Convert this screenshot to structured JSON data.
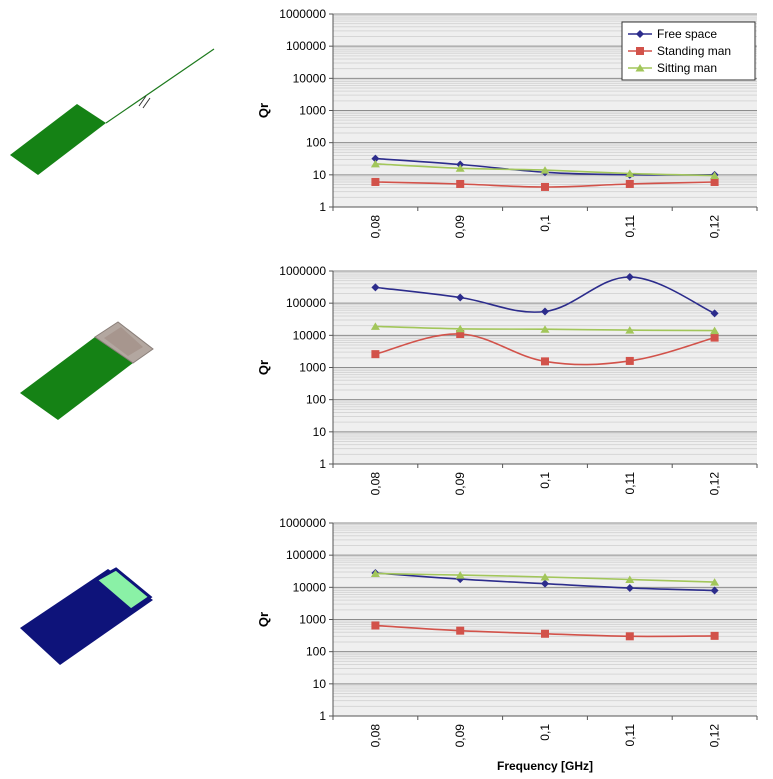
{
  "colors": {
    "free_space": "#2c2c8c",
    "standing_man": "#d2524a",
    "sitting_man": "#a2c65a",
    "plot_bg": "#efefef",
    "grid_major": "#8c8c8c",
    "grid_minor": "#d6d6d6",
    "antenna_green": "#158215",
    "phone_body": "#0e137a",
    "phone_screen": "#8af1a6",
    "chip_gray": "#b3a7a0"
  },
  "antennas": [
    {
      "name": "wire-antenna-model"
    },
    {
      "name": "chip-antenna-model"
    },
    {
      "name": "phone-antenna-model"
    }
  ],
  "chart_data": [
    {
      "type": "line",
      "yscale": "log",
      "ylim": [
        1,
        1000000
      ],
      "ylabel": "Qr",
      "xlabel": "",
      "yticks": [
        "1",
        "10",
        "100",
        "1000",
        "10000",
        "100000",
        "1000000"
      ],
      "categories": [
        "0,08",
        "0,09",
        "0,1",
        "0,11",
        "0,12"
      ],
      "legend": {
        "placement": "top-right"
      },
      "grid": true,
      "series": [
        {
          "name": "Free space",
          "marker": "diamond",
          "values": [
            32,
            21,
            12,
            10,
            10
          ]
        },
        {
          "name": "Standing man",
          "marker": "square",
          "values": [
            6,
            5.2,
            4.2,
            5.2,
            6
          ]
        },
        {
          "name": "Sitting man",
          "marker": "triangle",
          "values": [
            22,
            16,
            14,
            11,
            9.5
          ]
        }
      ]
    },
    {
      "type": "line",
      "yscale": "log",
      "ylim": [
        1,
        1000000
      ],
      "ylabel": "Qr",
      "xlabel": "",
      "yticks": [
        "1",
        "10",
        "100",
        "1000",
        "10000",
        "100000",
        "1000000"
      ],
      "categories": [
        "0,08",
        "0,09",
        "0,1",
        "0,11",
        "0,12"
      ],
      "grid": true,
      "series": [
        {
          "name": "Free space",
          "marker": "diamond",
          "values": [
            310000,
            150000,
            55000,
            650000,
            48000
          ]
        },
        {
          "name": "Standing man",
          "marker": "square",
          "values": [
            2600,
            11000,
            1550,
            1600,
            8500
          ]
        },
        {
          "name": "Sitting man",
          "marker": "triangle",
          "values": [
            19000,
            16000,
            15500,
            14500,
            14000
          ]
        }
      ]
    },
    {
      "type": "line",
      "yscale": "log",
      "ylim": [
        1,
        1000000
      ],
      "ylabel": "Qr",
      "xlabel": "Frequency [GHz]",
      "yticks": [
        "1",
        "10",
        "100",
        "1000",
        "10000",
        "100000",
        "1000000"
      ],
      "categories": [
        "0,08",
        "0,09",
        "0,1",
        "0,11",
        "0,12"
      ],
      "grid": true,
      "series": [
        {
          "name": "Free space",
          "marker": "diamond",
          "values": [
            28000,
            18000,
            13000,
            9500,
            8000
          ]
        },
        {
          "name": "Standing man",
          "marker": "square",
          "values": [
            650,
            450,
            360,
            300,
            310
          ]
        },
        {
          "name": "Sitting man",
          "marker": "triangle",
          "values": [
            27000,
            24000,
            21000,
            17500,
            14500
          ]
        }
      ]
    }
  ]
}
